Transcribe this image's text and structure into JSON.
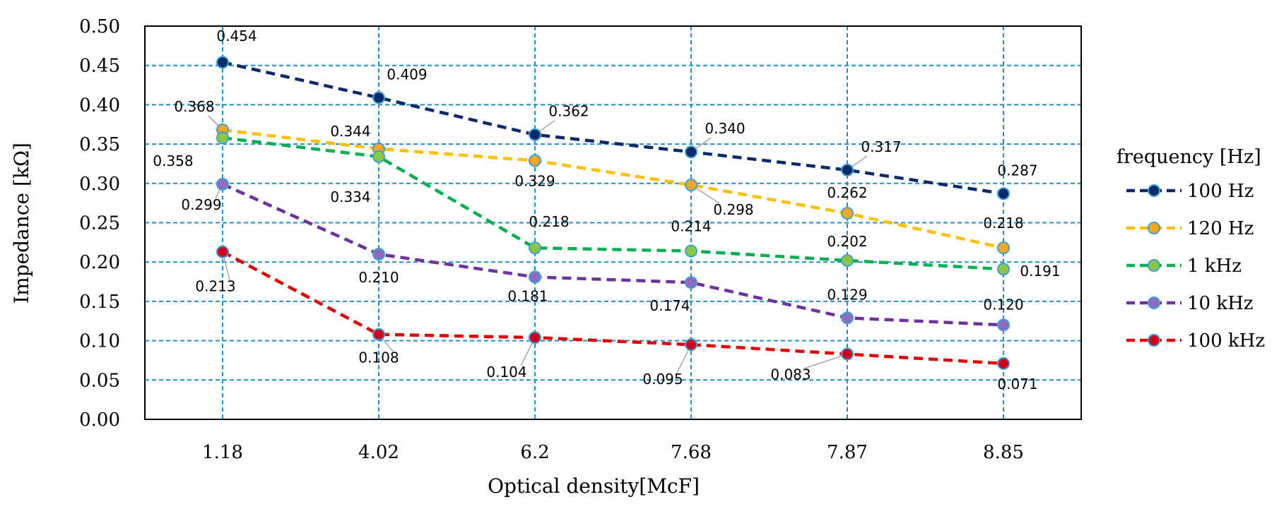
{
  "chart_data": {
    "type": "line",
    "title": "",
    "xlabel": "Optical density[McF]",
    "ylabel": "Impedance [kΩ]",
    "categories": [
      "1.18",
      "4.02",
      "6.2",
      "7.68",
      "7.87",
      "8.85"
    ],
    "ylim": [
      0,
      0.5
    ],
    "yticks": [
      "0.00",
      "0.05",
      "0.10",
      "0.15",
      "0.20",
      "0.25",
      "0.30",
      "0.35",
      "0.40",
      "0.45",
      "0.50"
    ],
    "grid": true,
    "legend_position": "right",
    "legend_title": "frequency [Hz]",
    "series": [
      {
        "name": "100 Hz",
        "color": "#0b2a6b",
        "marker_color": "#0b2a6b",
        "values": [
          0.454,
          0.409,
          0.362,
          0.34,
          0.317,
          0.287
        ],
        "labels": [
          "0.454",
          "0.409",
          "0.362",
          "0.340",
          "0.317",
          "0.287"
        ]
      },
      {
        "name": "120 Hz",
        "color": "#ffc000",
        "marker_color": "#f5a623",
        "values": [
          0.368,
          0.344,
          0.329,
          0.298,
          0.262,
          0.218
        ],
        "labels": [
          "0.368",
          "0.344",
          "0.329",
          "0.298",
          "0.262",
          "0.218"
        ]
      },
      {
        "name": "1 kHz",
        "color": "#00b050",
        "marker_color": "#8dc63f",
        "values": [
          0.358,
          0.334,
          0.218,
          0.214,
          0.202,
          0.191
        ],
        "labels": [
          "0.358",
          "0.334",
          "0.218",
          "0.214",
          "0.202",
          "0.191"
        ]
      },
      {
        "name": "10 kHz",
        "color": "#7030a0",
        "marker_color": "#8e6bbf",
        "values": [
          0.299,
          0.21,
          0.181,
          0.174,
          0.129,
          0.12
        ],
        "labels": [
          "0.299",
          "0.210",
          "0.181",
          "0.174",
          "0.129",
          "0.120"
        ]
      },
      {
        "name": "100 kHz",
        "color": "#e00000",
        "marker_color": "#d0021b",
        "values": [
          0.213,
          0.108,
          0.104,
          0.095,
          0.083,
          0.071
        ],
        "labels": [
          "0.213",
          "0.108",
          "0.104",
          "0.095",
          "0.083",
          "0.071"
        ]
      }
    ],
    "colors": {
      "grid": "#1f8fc9",
      "marker_outline": "#3aa0d8",
      "leader_line": "#a6a6a6"
    }
  }
}
